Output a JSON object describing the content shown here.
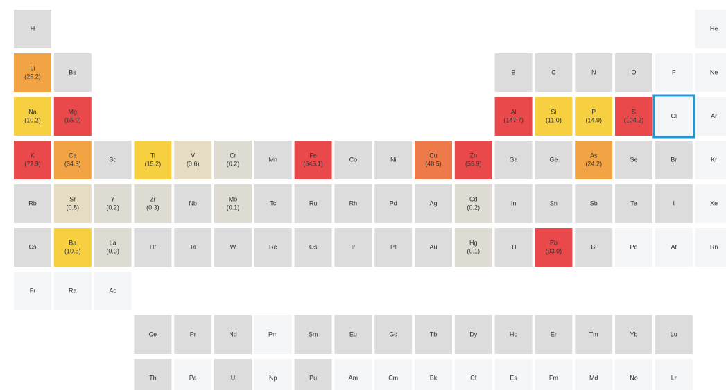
{
  "table": {
    "rows": [
      [
        {
          "symbol": "H"
        },
        null,
        null,
        null,
        null,
        null,
        null,
        null,
        null,
        null,
        null,
        null,
        null,
        null,
        null,
        null,
        null,
        {
          "symbol": "He",
          "muted": true
        }
      ],
      [
        {
          "symbol": "Li",
          "value": 29.2,
          "label": "(29.2)"
        },
        {
          "symbol": "Be"
        },
        null,
        null,
        null,
        null,
        null,
        null,
        null,
        null,
        null,
        null,
        {
          "symbol": "B"
        },
        {
          "symbol": "C"
        },
        {
          "symbol": "N"
        },
        {
          "symbol": "O"
        },
        {
          "symbol": "F",
          "muted": true
        },
        {
          "symbol": "Ne",
          "muted": true
        }
      ],
      [
        {
          "symbol": "Na",
          "value": 10.2,
          "label": "(10.2)"
        },
        {
          "symbol": "Mg",
          "value": 65.0,
          "label": "(65.0)"
        },
        null,
        null,
        null,
        null,
        null,
        null,
        null,
        null,
        null,
        null,
        {
          "symbol": "Al",
          "value": 147.7,
          "label": "(147.7)"
        },
        {
          "symbol": "Si",
          "value": 11.0,
          "label": "(11.0)"
        },
        {
          "symbol": "P",
          "value": 14.9,
          "label": "(14.9)"
        },
        {
          "symbol": "S",
          "value": 104.2,
          "label": "(104.2)"
        },
        {
          "symbol": "Cl",
          "muted": true,
          "selected": true
        },
        {
          "symbol": "Ar",
          "muted": true
        }
      ],
      [
        {
          "symbol": "K",
          "value": 72.9,
          "label": "(72.9)"
        },
        {
          "symbol": "Ca",
          "value": 34.3,
          "label": "(34.3)"
        },
        {
          "symbol": "Sc"
        },
        {
          "symbol": "Ti",
          "value": 15.2,
          "label": "(15.2)"
        },
        {
          "symbol": "V",
          "value": 0.6,
          "label": "(0.6)"
        },
        {
          "symbol": "Cr",
          "value": 0.2,
          "label": "(0.2)"
        },
        {
          "symbol": "Mn"
        },
        {
          "symbol": "Fe",
          "value": 645.1,
          "label": "(645.1)"
        },
        {
          "symbol": "Co"
        },
        {
          "symbol": "Ni"
        },
        {
          "symbol": "Cu",
          "value": 48.5,
          "label": "(48.5)"
        },
        {
          "symbol": "Zn",
          "value": 55.9,
          "label": "(55.9)"
        },
        {
          "symbol": "Ga"
        },
        {
          "symbol": "Ge"
        },
        {
          "symbol": "As",
          "value": 24.2,
          "label": "(24.2)"
        },
        {
          "symbol": "Se"
        },
        {
          "symbol": "Br"
        },
        {
          "symbol": "Kr",
          "muted": true
        }
      ],
      [
        {
          "symbol": "Rb"
        },
        {
          "symbol": "Sr",
          "value": 0.8,
          "label": "(0.8)"
        },
        {
          "symbol": "Y",
          "value": 0.2,
          "label": "(0.2)"
        },
        {
          "symbol": "Zr",
          "value": 0.3,
          "label": "(0.3)"
        },
        {
          "symbol": "Nb"
        },
        {
          "symbol": "Mo",
          "value": 0.1,
          "label": "(0.1)"
        },
        {
          "symbol": "Tc"
        },
        {
          "symbol": "Ru"
        },
        {
          "symbol": "Rh"
        },
        {
          "symbol": "Pd"
        },
        {
          "symbol": "Ag"
        },
        {
          "symbol": "Cd",
          "value": 0.2,
          "label": "(0.2)"
        },
        {
          "symbol": "In"
        },
        {
          "symbol": "Sn"
        },
        {
          "symbol": "Sb"
        },
        {
          "symbol": "Te"
        },
        {
          "symbol": "I"
        },
        {
          "symbol": "Xe",
          "muted": true
        }
      ],
      [
        {
          "symbol": "Cs"
        },
        {
          "symbol": "Ba",
          "value": 10.5,
          "label": "(10.5)"
        },
        {
          "symbol": "La",
          "value": 0.3,
          "label": "(0.3)"
        },
        {
          "symbol": "Hf"
        },
        {
          "symbol": "Ta"
        },
        {
          "symbol": "W"
        },
        {
          "symbol": "Re"
        },
        {
          "symbol": "Os"
        },
        {
          "symbol": "Ir"
        },
        {
          "symbol": "Pt"
        },
        {
          "symbol": "Au"
        },
        {
          "symbol": "Hg",
          "value": 0.1,
          "label": "(0.1)"
        },
        {
          "symbol": "Tl"
        },
        {
          "symbol": "Pb",
          "value": 93.0,
          "label": "(93.0)"
        },
        {
          "symbol": "Bi"
        },
        {
          "symbol": "Po",
          "muted": true
        },
        {
          "symbol": "At",
          "muted": true
        },
        {
          "symbol": "Rn",
          "muted": true
        }
      ],
      [
        {
          "symbol": "Fr",
          "muted": true
        },
        {
          "symbol": "Ra",
          "muted": true
        },
        {
          "symbol": "Ac",
          "muted": true
        },
        null,
        null,
        null,
        null,
        null,
        null,
        null,
        null,
        null,
        null,
        null,
        null,
        null,
        null,
        null
      ],
      [
        null,
        null,
        null,
        {
          "symbol": "Ce"
        },
        {
          "symbol": "Pr"
        },
        {
          "symbol": "Nd"
        },
        {
          "symbol": "Pm",
          "muted": true
        },
        {
          "symbol": "Sm"
        },
        {
          "symbol": "Eu"
        },
        {
          "symbol": "Gd"
        },
        {
          "symbol": "Tb"
        },
        {
          "symbol": "Dy"
        },
        {
          "symbol": "Ho"
        },
        {
          "symbol": "Er"
        },
        {
          "symbol": "Tm"
        },
        {
          "symbol": "Yb"
        },
        {
          "symbol": "Lu"
        },
        null
      ],
      [
        null,
        null,
        null,
        {
          "symbol": "Th"
        },
        {
          "symbol": "Pa",
          "muted": true
        },
        {
          "symbol": "U"
        },
        {
          "symbol": "Np",
          "muted": true
        },
        {
          "symbol": "Pu"
        },
        {
          "symbol": "Am",
          "muted": true
        },
        {
          "symbol": "Cm",
          "muted": true
        },
        {
          "symbol": "Bk",
          "muted": true
        },
        {
          "symbol": "Cf",
          "muted": true
        },
        {
          "symbol": "Es",
          "muted": true
        },
        {
          "symbol": "Fm",
          "muted": true
        },
        {
          "symbol": "Md",
          "muted": true
        },
        {
          "symbol": "No",
          "muted": true
        },
        {
          "symbol": "Lr",
          "muted": true
        },
        null
      ]
    ]
  }
}
